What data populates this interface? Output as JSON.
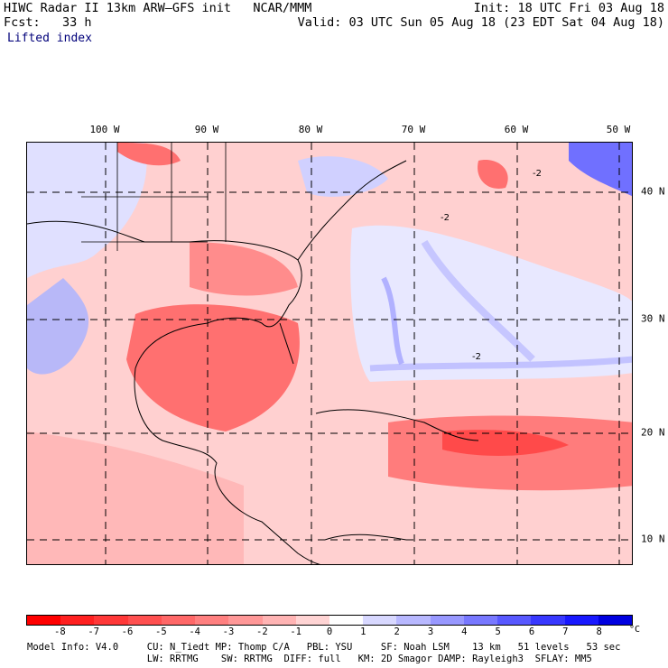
{
  "header": {
    "line1_left": "HIWC Radar II 13km ARW–GFS init   NCAR/MMM",
    "line1_right": "Init: 18 UTC Fri 03 Aug 18",
    "line2_left": "Fcst:   33 h",
    "line2_right": "Valid: 03 UTC Sun 05 Aug 18 (23 EDT Sat 04 Aug 18)",
    "field_name": "Lifted index"
  },
  "map": {
    "lon_labels": [
      "100 W",
      "90 W",
      "80 W",
      "70 W",
      "60 W",
      "50 W"
    ],
    "lat_labels": [
      "40 N",
      "30 N",
      "20 N",
      "10 N"
    ],
    "contour_labels": [
      "-2",
      "-2",
      "-2"
    ]
  },
  "legend": {
    "ticks": [
      "-8",
      "-7",
      "-6",
      "-5",
      "-4",
      "-3",
      "-2",
      "-1",
      "0",
      "1",
      "2",
      "3",
      "4",
      "5",
      "6",
      "7",
      "8"
    ],
    "unit": "°C",
    "colors": [
      "#ff0000",
      "#ff2020",
      "#ff3838",
      "#ff5050",
      "#ff6868",
      "#ff8080",
      "#ff9898",
      "#ffb4b4",
      "#ffd4d4",
      "#ffffff",
      "#d8d8ff",
      "#b8b8ff",
      "#9898ff",
      "#7878ff",
      "#5858ff",
      "#3838ff",
      "#1818ff",
      "#0000e0"
    ]
  },
  "model_info": {
    "line1": "Model Info: V4.0     CU: N_Tiedt MP: Thomp C/A   PBL: YSU     SF: Noah LSM    13 km   51 levels   53 sec",
    "line2": "                     LW: RRTMG    SW: RRTMG  DIFF: full   KM: 2D Smagor DAMP: Rayleigh3  SFLAY: MM5"
  }
}
